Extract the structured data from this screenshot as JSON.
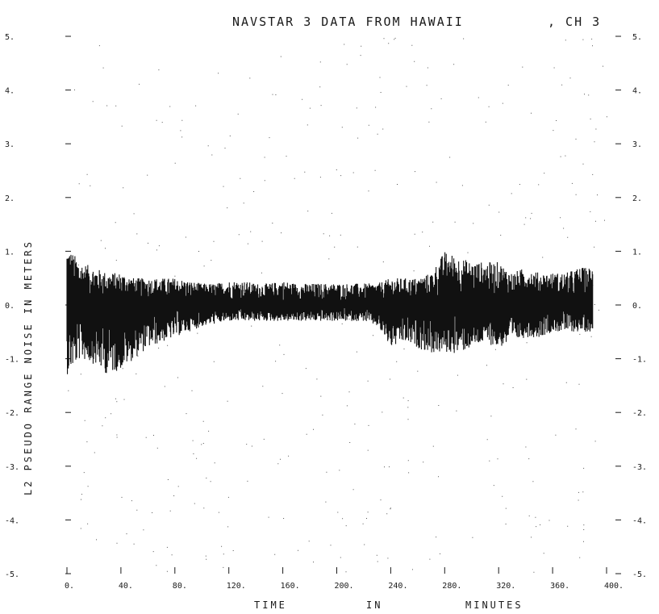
{
  "chart_data": {
    "type": "line",
    "title": "NAVSTAR 3 DATA FROM HAWAII",
    "channel": ", CH 3",
    "xlabel_words": [
      "TIME",
      "IN",
      "MINUTES"
    ],
    "ylabel": "L2 PSEUDO RANGE NOISE IN METERS",
    "xlim": [
      0,
      400
    ],
    "ylim": [
      -5,
      5
    ],
    "x_ticks": [
      0,
      40,
      80,
      120,
      160,
      200,
      240,
      280,
      320,
      360,
      400
    ],
    "x_tick_labels": [
      "0.",
      "40.",
      "80.",
      "120.",
      "160.",
      "200.",
      "240.",
      "280.",
      "320.",
      "360.",
      "400."
    ],
    "y_ticks": [
      5,
      4,
      3,
      2,
      1,
      0,
      -1,
      -2,
      -3,
      -4,
      -5
    ],
    "y_tick_labels": [
      "5.",
      "4.",
      "3.",
      "2.",
      "1.",
      "0.",
      "-1.",
      "-2.",
      "-3.",
      "-4.",
      "-5."
    ],
    "grid": false,
    "series": [
      {
        "x": [
          0,
          10,
          20,
          30,
          40,
          50,
          60,
          70,
          80,
          90,
          100,
          110,
          120,
          130,
          140,
          150,
          160,
          170,
          180,
          190,
          200,
          210,
          220,
          230,
          240,
          250,
          260,
          270,
          280,
          290,
          300,
          310,
          320,
          330,
          340,
          350,
          360,
          370,
          380,
          390
        ],
        "upper": [
          1.1,
          0.8,
          0.7,
          0.6,
          0.6,
          0.5,
          0.5,
          0.5,
          0.5,
          0.45,
          0.4,
          0.4,
          0.45,
          0.45,
          0.4,
          0.4,
          0.45,
          0.4,
          0.4,
          0.4,
          0.4,
          0.4,
          0.4,
          0.4,
          0.5,
          0.5,
          0.5,
          0.6,
          1.0,
          0.9,
          0.8,
          0.8,
          0.8,
          0.6,
          0.7,
          0.6,
          0.6,
          0.6,
          0.7,
          0.7
        ],
        "lower": [
          -1.3,
          -1.0,
          -1.1,
          -1.3,
          -1.2,
          -1.0,
          -0.8,
          -0.7,
          -0.6,
          -0.5,
          -0.4,
          -0.35,
          -0.3,
          -0.3,
          -0.3,
          -0.3,
          -0.3,
          -0.3,
          -0.3,
          -0.3,
          -0.3,
          -0.3,
          -0.3,
          -0.4,
          -0.8,
          -0.7,
          -0.8,
          -0.9,
          -0.9,
          -0.9,
          -0.8,
          -0.7,
          -0.8,
          -0.7,
          -0.6,
          -0.6,
          -0.5,
          -0.5,
          -0.5,
          -0.5
        ]
      }
    ]
  }
}
